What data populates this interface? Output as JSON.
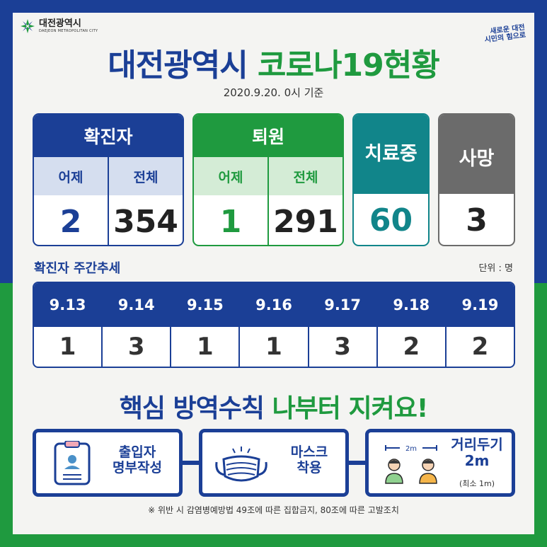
{
  "header": {
    "logo_name": "대전광역시",
    "logo_sub": "DAEJEON METROPOLITAN CITY",
    "slogan_line1": "새로운 대전",
    "slogan_line2": "시민의 힘으로",
    "title_part1": "대전광역시",
    "title_part2": "코로나19현황",
    "date": "2020.9.20. 0시 기준"
  },
  "stats": {
    "confirmed": {
      "label": "확진자",
      "col_yesterday": "어제",
      "col_total": "전체",
      "yesterday": "2",
      "total": "354"
    },
    "released": {
      "label": "퇴원",
      "col_yesterday": "어제",
      "col_total": "전체",
      "yesterday": "1",
      "total": "291"
    },
    "treating": {
      "label": "치료중",
      "value": "60"
    },
    "death": {
      "label": "사망",
      "value": "3"
    }
  },
  "weekly": {
    "title": "확진자 주간추세",
    "unit": "단위 : 명",
    "days": [
      {
        "date": "9.13",
        "value": "1"
      },
      {
        "date": "9.14",
        "value": "3"
      },
      {
        "date": "9.15",
        "value": "1"
      },
      {
        "date": "9.16",
        "value": "1"
      },
      {
        "date": "9.17",
        "value": "3"
      },
      {
        "date": "9.18",
        "value": "2"
      },
      {
        "date": "9.19",
        "value": "2"
      }
    ]
  },
  "rules": {
    "title_part1": "핵심 방역수칙",
    "title_part2": "나부터 지켜요!",
    "items": [
      {
        "line1": "출입자",
        "line2": "명부작성",
        "icon": "clipboard-icon"
      },
      {
        "line1": "마스크",
        "line2": "착용",
        "icon": "mask-icon"
      },
      {
        "line1": "거리두기",
        "line2": "2m",
        "note": "(최소 1m)",
        "icon": "distance-icon",
        "distance_label": "2m"
      }
    ],
    "footnote": "※ 위반 시 감염병예방법 49조에 따른 집합금지, 80조에 따른 고발조치"
  },
  "colors": {
    "blue": "#1b3f96",
    "green": "#1f9a3f",
    "teal": "#11858a",
    "gray": "#6b6b6b"
  }
}
